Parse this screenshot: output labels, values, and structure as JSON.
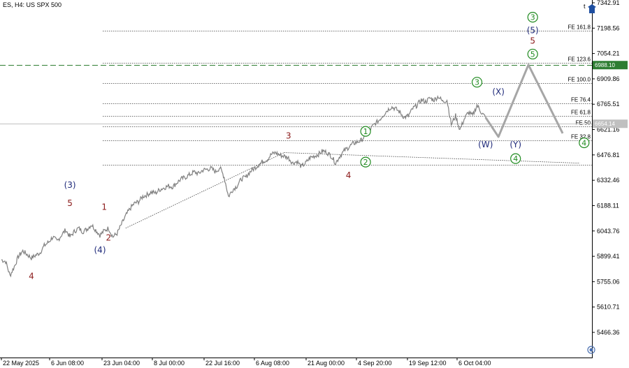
{
  "chart_title": "ES, H4:  US SPX 500",
  "corner_label": "t",
  "colors": {
    "background": "#ffffff",
    "price": "#808080",
    "projection": "#a6a6a6",
    "level_line": "#404040",
    "dashed_green": "#2e7d32",
    "green_box": "#2e7d32",
    "gray_box": "#c0c0c0",
    "wave_red": "#8b1a1a",
    "wave_navy": "#1f2a7a",
    "wave_green": "#1f8a1f"
  },
  "chart_data": {
    "type": "line",
    "title": "ES, H4:  US SPX 500",
    "symbol": "ES",
    "timeframe": "H4",
    "instrument": "US SPX 500",
    "y_ticks": [
      "7342.91",
      "7198.56",
      "7054.21",
      "6909.86",
      "6765.51",
      "6621.16",
      "6476.81",
      "6332.46",
      "6188.11",
      "6043.76",
      "5899.41",
      "5755.06",
      "5610.71",
      "5466.36"
    ],
    "ylim": [
      5400,
      7360
    ],
    "x_tick_labels": [
      "22 May 2025",
      "6 Jun 08:00",
      "23 Jun 04:00",
      "8 Jul 00:00",
      "22 Jul 16:00",
      "6 Aug 08:00",
      "21 Aug 00:00",
      "4 Sep 20:00",
      "19 Sep 12:00",
      "6 Oct 04:00"
    ],
    "price_boxes": [
      {
        "value": "6988.10",
        "color": "green"
      },
      {
        "value": "6654.14",
        "color": "gray"
      }
    ],
    "fibonacci_levels": [
      {
        "label": "FE 161.8",
        "value": 7185
      },
      {
        "label": "FE 123.6",
        "value": 7000
      },
      {
        "label": "FE 100.0",
        "value": 6885
      },
      {
        "label": "FE 76.4",
        "value": 6770
      },
      {
        "label": "FE 61.8",
        "value": 6700
      },
      {
        "label": "FE 50",
        "value": 6640
      },
      {
        "label": "FE 32.8",
        "value": 6560
      }
    ],
    "horizontal_line": {
      "value": 6420
    },
    "dashed_level": {
      "value": 6988.1
    },
    "price_series": {
      "name": "ES",
      "points": [
        [
          0,
          5880
        ],
        [
          2,
          5870
        ],
        [
          4,
          5790
        ],
        [
          6,
          5840
        ],
        [
          8,
          5900
        ],
        [
          10,
          5930
        ],
        [
          12,
          5910
        ],
        [
          14,
          5890
        ],
        [
          16,
          5905
        ],
        [
          18,
          5920
        ],
        [
          20,
          5960
        ],
        [
          22,
          5980
        ],
        [
          24,
          6010
        ],
        [
          26,
          5985
        ],
        [
          28,
          6020
        ],
        [
          30,
          6050
        ],
        [
          32,
          6010
        ],
        [
          34,
          6040
        ],
        [
          36,
          6060
        ],
        [
          38,
          6040
        ],
        [
          40,
          6055
        ],
        [
          42,
          6080
        ],
        [
          44,
          6050
        ],
        [
          46,
          6020
        ],
        [
          48,
          6045
        ],
        [
          50,
          6060
        ],
        [
          52,
          6010
        ],
        [
          54,
          6030
        ],
        [
          56,
          6080
        ],
        [
          58,
          6130
        ],
        [
          60,
          6170
        ],
        [
          62,
          6200
        ],
        [
          64,
          6210
        ],
        [
          66,
          6240
        ],
        [
          68,
          6250
        ],
        [
          70,
          6265
        ],
        [
          72,
          6260
        ],
        [
          74,
          6280
        ],
        [
          76,
          6290
        ],
        [
          78,
          6300
        ],
        [
          80,
          6295
        ],
        [
          82,
          6320
        ],
        [
          84,
          6340
        ],
        [
          86,
          6350
        ],
        [
          88,
          6365
        ],
        [
          90,
          6380
        ],
        [
          92,
          6370
        ],
        [
          94,
          6390
        ],
        [
          96,
          6395
        ],
        [
          98,
          6400
        ],
        [
          100,
          6380
        ],
        [
          102,
          6405
        ],
        [
          104,
          6350
        ],
        [
          106,
          6240
        ],
        [
          108,
          6280
        ],
        [
          110,
          6300
        ],
        [
          112,
          6340
        ],
        [
          114,
          6350
        ],
        [
          116,
          6380
        ],
        [
          118,
          6400
        ],
        [
          120,
          6420
        ],
        [
          122,
          6440
        ],
        [
          124,
          6450
        ],
        [
          126,
          6480
        ],
        [
          128,
          6490
        ],
        [
          130,
          6475
        ],
        [
          132,
          6470
        ],
        [
          134,
          6460
        ],
        [
          136,
          6430
        ],
        [
          138,
          6440
        ],
        [
          140,
          6410
        ],
        [
          142,
          6430
        ],
        [
          144,
          6460
        ],
        [
          146,
          6470
        ],
        [
          148,
          6480
        ],
        [
          150,
          6500
        ],
        [
          152,
          6490
        ],
        [
          154,
          6470
        ],
        [
          156,
          6430
        ],
        [
          158,
          6470
        ],
        [
          160,
          6500
        ],
        [
          162,
          6520
        ],
        [
          164,
          6540
        ],
        [
          166,
          6550
        ],
        [
          168,
          6560
        ],
        [
          170,
          6590
        ],
        [
          172,
          6620
        ],
        [
          174,
          6650
        ],
        [
          176,
          6670
        ],
        [
          178,
          6700
        ],
        [
          180,
          6730
        ],
        [
          182,
          6750
        ],
        [
          184,
          6740
        ],
        [
          186,
          6720
        ],
        [
          188,
          6690
        ],
        [
          190,
          6700
        ],
        [
          192,
          6740
        ],
        [
          194,
          6760
        ],
        [
          196,
          6790
        ],
        [
          198,
          6780
        ],
        [
          200,
          6800
        ],
        [
          202,
          6790
        ],
        [
          204,
          6810
        ],
        [
          206,
          6780
        ],
        [
          208,
          6790
        ],
        [
          210,
          6650
        ],
        [
          212,
          6700
        ],
        [
          214,
          6620
        ],
        [
          216,
          6680
        ],
        [
          218,
          6720
        ],
        [
          220,
          6700
        ],
        [
          222,
          6760
        ],
        [
          224,
          6720
        ],
        [
          226,
          6690
        ]
      ]
    },
    "projection_path": {
      "points": [
        [
          226,
          6690
        ],
        [
          232,
          6580
        ],
        [
          246,
          6990
        ],
        [
          262,
          6600
        ]
      ]
    },
    "trend_lines": [
      {
        "points": [
          [
            58,
            6060
          ],
          [
            132,
            6490
          ]
        ]
      },
      {
        "points": [
          [
            132,
            6490
          ],
          [
            270,
            6430
          ]
        ]
      }
    ],
    "wave_labels": [
      {
        "text": "4",
        "x": 14,
        "y": 5770,
        "color": "red"
      },
      {
        "text": "(3)",
        "x": 32,
        "y": 6290,
        "color": "navy"
      },
      {
        "text": "5",
        "x": 32,
        "y": 6185,
        "color": "red"
      },
      {
        "text": "(4)",
        "x": 46,
        "y": 5920,
        "color": "navy"
      },
      {
        "text": "1",
        "x": 48,
        "y": 6165,
        "color": "red"
      },
      {
        "text": "2",
        "x": 50,
        "y": 5990,
        "color": "red"
      },
      {
        "text": "3",
        "x": 134,
        "y": 6570,
        "color": "red"
      },
      {
        "text": "4",
        "x": 162,
        "y": 6345,
        "color": "red"
      },
      {
        "text": "1",
        "x": 170,
        "y": 6595,
        "color": "green_circle"
      },
      {
        "text": "2",
        "x": 170,
        "y": 6420,
        "color": "green_circle"
      },
      {
        "text": "3",
        "x": 222,
        "y": 6875,
        "color": "green_circle"
      },
      {
        "text": "(X)",
        "x": 232,
        "y": 6820,
        "color": "navy"
      },
      {
        "text": "(W)",
        "x": 226,
        "y": 6520,
        "color": "navy"
      },
      {
        "text": "(Y)",
        "x": 240,
        "y": 6520,
        "color": "navy"
      },
      {
        "text": "4",
        "x": 240,
        "y": 6440,
        "color": "green_circle"
      },
      {
        "text": "3",
        "x": 248,
        "y": 7245,
        "color": "green_circle"
      },
      {
        "text": "(5)",
        "x": 248,
        "y": 7170,
        "color": "navy"
      },
      {
        "text": "5",
        "x": 248,
        "y": 7110,
        "color": "red"
      },
      {
        "text": "5",
        "x": 248,
        "y": 7035,
        "color": "green_circle"
      },
      {
        "text": "4",
        "x": 272,
        "y": 6530,
        "color": "green_circle"
      }
    ]
  }
}
